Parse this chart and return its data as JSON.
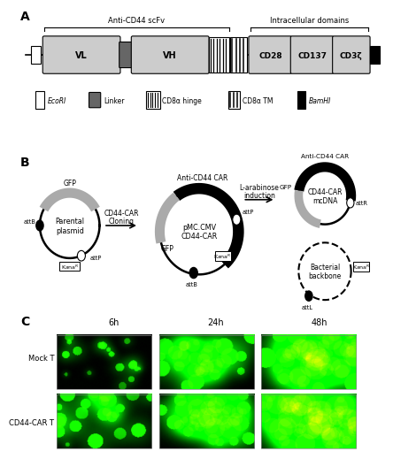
{
  "panel_a": {
    "scfv_label": "Anti-CD44 scFv",
    "intracellular_label": "Intracellular domains",
    "domains": [
      "VL",
      "VH",
      "CD28",
      "CD137",
      "CD3ζ"
    ],
    "legend_items": [
      "EcoRI",
      "Linker",
      "CD8α hinge",
      "CD8α TM",
      "BamHI"
    ]
  },
  "panel_b": {
    "plasmid1_label": "Parental\nplasmid",
    "plasmid2_label": "pMC.CMV\nCD44-CAR",
    "mcDNA_label": "CD44-CAR\nmcDNA",
    "backbone_label": "Bacterial\nbackbone",
    "arrow1_label1": "CD44-CAR",
    "arrow1_label2": "Cloning",
    "arrow2_label1": "L-arabinose",
    "arrow2_label2": "induction"
  },
  "panel_c": {
    "time_points": [
      "6h",
      "24h",
      "48h"
    ],
    "row_labels": [
      "Mock T",
      "CD44-CAR T"
    ]
  },
  "bg_color": "#ffffff",
  "gray_arc": "#aaaaaa",
  "light_gray": "#cccccc",
  "dark_gray": "#666666"
}
